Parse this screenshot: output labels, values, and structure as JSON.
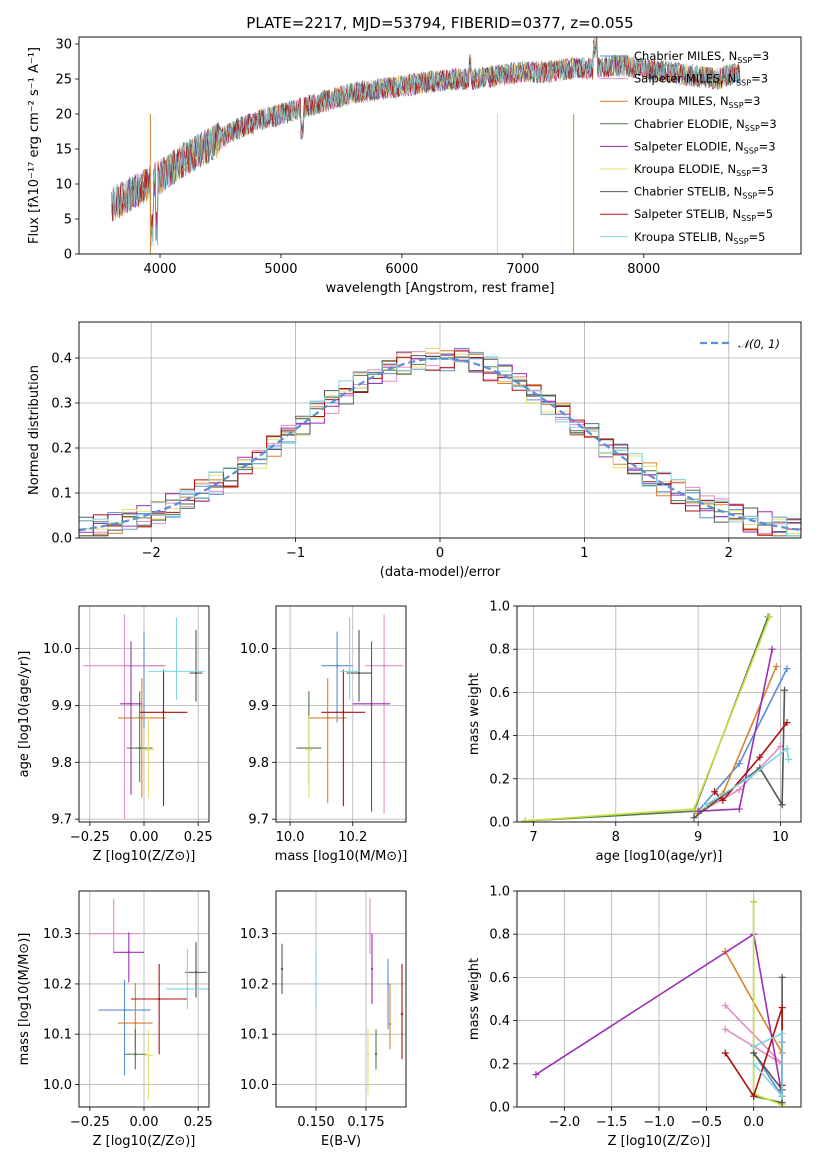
{
  "figure": {
    "title": "PLATE=2217, MJD=53794, FIBERID=0377, z=0.055"
  },
  "chart_data": [
    {
      "type": "line",
      "panel": "spectrum",
      "title": "PLATE=2217, MJD=53794, FIBERID=0377, z=0.055",
      "xlabel": "wavelength [Angstrom, rest frame]",
      "ylabel": "Flux [fλ10⁻¹⁷ erg cm⁻² s⁻¹ A⁻¹]",
      "xlim": [
        3330,
        9300
      ],
      "ylim": [
        0,
        31
      ],
      "xticks": [
        4000,
        5000,
        6000,
        7000,
        8000
      ],
      "yticks": [
        0,
        5,
        10,
        15,
        20,
        25,
        30
      ],
      "grid": false,
      "legend_position": "right",
      "continuum": {
        "x": [
          3600,
          3800,
          4000,
          4200,
          4400,
          4600,
          4800,
          5000,
          5200,
          5400,
          5600,
          5800,
          6000,
          6200,
          6400,
          6600,
          6800,
          7000,
          7200,
          7400,
          7600,
          7800,
          8000,
          8200,
          8400,
          8600,
          8800
        ],
        "y": [
          7,
          9,
          11,
          13.5,
          15.5,
          17.5,
          19,
          20,
          21,
          22,
          23,
          23.5,
          24,
          24.5,
          25,
          25,
          25.5,
          26,
          26,
          26.5,
          26.5,
          27,
          26.5,
          26,
          25.5,
          25,
          26
        ]
      },
      "series": [
        {
          "name": "Chabrier MILES, N_SSP=3",
          "color": "#5a8fd6"
        },
        {
          "name": "Salpeter MILES, N_SSP=3",
          "color": "#e58dc6"
        },
        {
          "name": "Kroupa MILES, N_SSP=3",
          "color": "#d9822b"
        },
        {
          "name": "Chabrier ELODIE, N_SSP=3",
          "color": "#4f7a4f"
        },
        {
          "name": "Salpeter ELODIE, N_SSP=3",
          "color": "#9b30b5"
        },
        {
          "name": "Kroupa ELODIE, N_SSP=3",
          "color": "#e8e070"
        },
        {
          "name": "Chabrier STELIB, N_SSP=5",
          "color": "#555555"
        },
        {
          "name": "Salpeter STELIB, N_SSP=5",
          "color": "#b01010"
        },
        {
          "name": "Kroupa STELIB, N_SSP=5",
          "color": "#7fd4e0"
        }
      ]
    },
    {
      "type": "histogram",
      "panel": "residuals",
      "xlabel": "(data-model)/error",
      "ylabel": "Normed distribution",
      "xlim": [
        -2.5,
        2.5
      ],
      "ylim": [
        0,
        0.48
      ],
      "xticks": [
        -2,
        -1,
        0,
        1,
        2
      ],
      "yticks": [
        0.0,
        0.1,
        0.2,
        0.3,
        0.4
      ],
      "grid": true,
      "legend_position": "top-right",
      "reference_curve": {
        "name": "𝒩(0, 1)",
        "mean": 0,
        "sigma": 1,
        "color": "#5a8fd6"
      },
      "bin_width": 0.1
    },
    {
      "type": "scatter",
      "panel": "age-vs-Z",
      "xlabel": "Z [log10(Z/Z⊙)]",
      "ylabel": "age [log10(age/yr)]",
      "xlim": [
        -0.3,
        0.3
      ],
      "ylim": [
        9.695,
        10.075
      ],
      "xticks": [
        -0.25,
        0.0,
        0.25
      ],
      "yticks": [
        9.7,
        9.8,
        9.9,
        10.0
      ],
      "grid": true,
      "points": [
        {
          "x": 0.0,
          "y": 9.97,
          "xerr": 0.09,
          "yerr": [
            0.11,
            0.06
          ],
          "color": "#5a8fd6"
        },
        {
          "x": -0.09,
          "y": 9.97,
          "xerr": 0.19,
          "yerr": [
            0.27,
            0.09
          ],
          "color": "#e58dc6"
        },
        {
          "x": -0.01,
          "y": 9.878,
          "xerr": 0.11,
          "yerr": [
            0.14,
            0.07
          ],
          "color": "#d9822b"
        },
        {
          "x": -0.02,
          "y": 9.825,
          "xerr": 0.06,
          "yerr": [
            0.06,
            0.1
          ],
          "color": "#4f7a4f"
        },
        {
          "x": -0.06,
          "y": 9.903,
          "xerr": 0.05,
          "yerr": [
            0.16,
            0.11
          ],
          "color": "#9b30b5"
        },
        {
          "x": 0.02,
          "y": 9.822,
          "xerr": 0.03,
          "yerr": [
            0.085,
            0.06
          ],
          "color": "#e8e070"
        },
        {
          "x": 0.24,
          "y": 9.957,
          "xerr": 0.03,
          "yerr": [
            0.05,
            0.076
          ],
          "color": "#555555"
        },
        {
          "x": 0.09,
          "y": 9.888,
          "xerr": 0.11,
          "yerr": [
            0.165,
            0.075
          ],
          "color": "#b01010"
        },
        {
          "x": 0.15,
          "y": 9.96,
          "xerr": 0.13,
          "yerr": [
            0.05,
            0.095
          ],
          "color": "#7fd4e0"
        }
      ]
    },
    {
      "type": "scatter",
      "panel": "age-vs-mass",
      "xlabel": "mass [log10(M/M⊙)]",
      "ylabel": "",
      "xlim": [
        9.955,
        10.37
      ],
      "ylim": [
        9.695,
        10.075
      ],
      "xticks": [
        10.0,
        10.2
      ],
      "yticks": [
        9.7,
        9.8,
        9.9,
        10.0
      ],
      "grid": true,
      "points": [
        {
          "x": 10.15,
          "y": 9.97,
          "xerr": 0.05,
          "yerr": [
            0.1,
            0.06
          ],
          "color": "#5a8fd6"
        },
        {
          "x": 10.3,
          "y": 9.97,
          "xerr": 0.06,
          "yerr": [
            0.26,
            0.09
          ],
          "color": "#e58dc6"
        },
        {
          "x": 10.12,
          "y": 9.878,
          "xerr": 0.06,
          "yerr": [
            0.15,
            0.07
          ],
          "color": "#d9822b"
        },
        {
          "x": 10.06,
          "y": 9.825,
          "xerr": 0.04,
          "yerr": [
            0.06,
            0.1
          ],
          "color": "#4f7a4f"
        },
        {
          "x": 10.26,
          "y": 9.903,
          "xerr": 0.06,
          "yerr": [
            0.19,
            0.11
          ],
          "color": "#9b30b5"
        },
        {
          "x": 10.06,
          "y": 9.822,
          "xerr": 0.01,
          "yerr": [
            0.085,
            0.06
          ],
          "color": "#e8e070"
        },
        {
          "x": 10.22,
          "y": 9.957,
          "xerr": 0.04,
          "yerr": [
            0.05,
            0.076
          ],
          "color": "#555555"
        },
        {
          "x": 10.17,
          "y": 9.888,
          "xerr": 0.07,
          "yerr": [
            0.165,
            0.075
          ],
          "color": "#b01010"
        },
        {
          "x": 10.19,
          "y": 9.96,
          "xerr": 0.03,
          "yerr": [
            0.05,
            0.095
          ],
          "color": "#7fd4e0"
        }
      ]
    },
    {
      "type": "line",
      "panel": "mass-weight-vs-age",
      "xlabel": "age [log10(age/yr)]",
      "ylabel": "mass weight",
      "xlim": [
        6.8,
        10.25
      ],
      "ylim": [
        0,
        1.0
      ],
      "xticks": [
        7,
        8,
        9,
        10
      ],
      "yticks": [
        0.0,
        0.2,
        0.4,
        0.6,
        0.8,
        1.0
      ],
      "grid": true,
      "series": [
        {
          "name": "Chabrier MILES",
          "color": "#5a8fd6",
          "x": [
            9.0,
            9.5,
            10.08
          ],
          "y": [
            0.05,
            0.27,
            0.71
          ]
        },
        {
          "name": "Salpeter MILES",
          "color": "#e58dc6",
          "x": [
            9.0,
            9.5,
            10.0
          ],
          "y": [
            0.04,
            0.15,
            0.35
          ]
        },
        {
          "name": "Kroupa MILES",
          "color": "#d9822b",
          "x": [
            9.0,
            9.3,
            9.95
          ],
          "y": [
            0.04,
            0.13,
            0.72
          ]
        },
        {
          "name": "Chabrier ELODIE",
          "color": "#4f7a4f",
          "x": [
            6.9,
            8.95,
            9.85
          ],
          "y": [
            0.005,
            0.05,
            0.95
          ]
        },
        {
          "name": "Salpeter ELODIE",
          "color": "#9b30b5",
          "x": [
            9.0,
            9.5,
            9.9
          ],
          "y": [
            0.05,
            0.06,
            0.8
          ]
        },
        {
          "name": "Kroupa ELODIE",
          "color": "#c8e040",
          "x": [
            6.9,
            8.95,
            9.87
          ],
          "y": [
            0.005,
            0.06,
            0.95
          ]
        },
        {
          "name": "Chabrier STELIB",
          "color": "#555555",
          "x": [
            8.95,
            9.75,
            10.02,
            10.05
          ],
          "y": [
            0.02,
            0.25,
            0.08,
            0.61
          ]
        },
        {
          "name": "Salpeter STELIB",
          "color": "#b01010",
          "x": [
            9.2,
            9.3,
            9.75,
            10.08
          ],
          "y": [
            0.14,
            0.1,
            0.3,
            0.46
          ]
        },
        {
          "name": "Kroupa STELIB",
          "color": "#7fd4e0",
          "x": [
            9.1,
            9.6,
            10.08,
            10.1
          ],
          "y": [
            0.08,
            0.2,
            0.34,
            0.29
          ]
        }
      ]
    },
    {
      "type": "scatter",
      "panel": "mass-vs-Z",
      "xlabel": "Z [log10(Z/Z⊙)]",
      "ylabel": "mass [log10(M/M⊙)]",
      "xlim": [
        -0.3,
        0.3
      ],
      "ylim": [
        9.955,
        10.385
      ],
      "xticks": [
        -0.25,
        0.0,
        0.25
      ],
      "yticks": [
        10.0,
        10.1,
        10.2,
        10.3
      ],
      "grid": true,
      "points": [
        {
          "x": -0.09,
          "y": 10.148,
          "xerr": 0.12,
          "yerr": [
            0.13,
            0.06
          ],
          "color": "#5a8fd6"
        },
        {
          "x": -0.14,
          "y": 10.3,
          "xerr": 0.12,
          "yerr": [
            0.04,
            0.07
          ],
          "color": "#e58dc6"
        },
        {
          "x": -0.04,
          "y": 10.122,
          "xerr": 0.08,
          "yerr": [
            0.05,
            0.08
          ],
          "color": "#d9822b"
        },
        {
          "x": -0.04,
          "y": 10.06,
          "xerr": 0.05,
          "yerr": [
            0.03,
            0.05
          ],
          "color": "#4f7a4f"
        },
        {
          "x": -0.07,
          "y": 10.263,
          "xerr": 0.07,
          "yerr": [
            0.06,
            0.04
          ],
          "color": "#9b30b5"
        },
        {
          "x": 0.02,
          "y": 10.058,
          "xerr": 0.02,
          "yerr": [
            0.09,
            0.05
          ],
          "color": "#e8e070"
        },
        {
          "x": 0.24,
          "y": 10.223,
          "xerr": 0.05,
          "yerr": [
            0.05,
            0.06
          ],
          "color": "#555555"
        },
        {
          "x": 0.07,
          "y": 10.17,
          "xerr": 0.13,
          "yerr": [
            0.11,
            0.07
          ],
          "color": "#b01010"
        },
        {
          "x": 0.2,
          "y": 10.19,
          "xerr": 0.1,
          "yerr": [
            0.04,
            0.08
          ],
          "color": "#7fd4e0"
        }
      ]
    },
    {
      "type": "scatter",
      "panel": "mass-vs-EBV",
      "xlabel": "E(B-V)",
      "ylabel": "",
      "xlim": [
        0.13,
        0.195
      ],
      "ylim": [
        9.955,
        10.385
      ],
      "xticks": [
        0.15,
        0.175
      ],
      "yticks": [
        10.0,
        10.1,
        10.2,
        10.3
      ],
      "grid": true,
      "points": [
        {
          "x": 0.186,
          "y": 10.2,
          "xerr": 0,
          "yerr": [
            0.09,
            0.05
          ],
          "color": "#5a8fd6"
        },
        {
          "x": 0.177,
          "y": 10.3,
          "xerr": 0,
          "yerr": [
            0.04,
            0.07
          ],
          "color": "#e58dc6"
        },
        {
          "x": 0.187,
          "y": 10.12,
          "xerr": 0,
          "yerr": [
            0.05,
            0.08
          ],
          "color": "#d9822b"
        },
        {
          "x": 0.18,
          "y": 10.06,
          "xerr": 0,
          "yerr": [
            0.03,
            0.05
          ],
          "color": "#4f7a4f"
        },
        {
          "x": 0.178,
          "y": 10.23,
          "xerr": 0,
          "yerr": [
            0.07,
            0.07
          ],
          "color": "#9b30b5"
        },
        {
          "x": 0.176,
          "y": 10.06,
          "xerr": 0,
          "yerr": [
            0.08,
            0.05
          ],
          "color": "#e8e070"
        },
        {
          "x": 0.133,
          "y": 10.23,
          "xerr": 0,
          "yerr": [
            0.05,
            0.05
          ],
          "color": "#555555"
        },
        {
          "x": 0.193,
          "y": 10.14,
          "xerr": 0,
          "yerr": [
            0.09,
            0.1
          ],
          "color": "#b01010"
        },
        {
          "x": 0.15,
          "y": 10.2,
          "xerr": 0,
          "yerr": [
            0.05,
            0.07
          ],
          "color": "#7fd4e0"
        }
      ]
    },
    {
      "type": "line",
      "panel": "mass-weight-vs-Z",
      "xlabel": "Z [log10(Z/Z⊙)]",
      "ylabel": "mass weight",
      "xlim": [
        -2.5,
        0.5
      ],
      "ylim": [
        0,
        1.0
      ],
      "xticks": [
        -2.0,
        -1.5,
        -1.0,
        -0.5,
        0.0
      ],
      "yticks": [
        0.0,
        0.2,
        0.4,
        0.6,
        0.8,
        1.0
      ],
      "grid": true,
      "series": [
        {
          "name": "Chabrier MILES",
          "color": "#5a8fd6",
          "x": [
            0.0,
            0.3,
            0.3
          ],
          "y": [
            0.25,
            0.05,
            0.3
          ]
        },
        {
          "name": "Salpeter MILES",
          "color": "#e58dc6",
          "x": [
            -0.3,
            0.3,
            -0.3
          ],
          "y": [
            0.47,
            0.2,
            0.36
          ]
        },
        {
          "name": "Kroupa MILES",
          "color": "#d9822b",
          "x": [
            -0.3,
            0.3,
            0.3
          ],
          "y": [
            0.72,
            0.25,
            0.05
          ]
        },
        {
          "name": "Chabrier ELODIE",
          "color": "#4f7a4f",
          "x": [
            0.0,
            0.0,
            0.3
          ],
          "y": [
            0.95,
            0.05,
            0.02
          ]
        },
        {
          "name": "Salpeter ELODIE",
          "color": "#9b30b5",
          "x": [
            -2.3,
            0.0,
            0.3
          ],
          "y": [
            0.15,
            0.8,
            0.05
          ]
        },
        {
          "name": "Kroupa ELODIE",
          "color": "#c8e040",
          "x": [
            0.0,
            0.0,
            0.3
          ],
          "y": [
            0.95,
            0.06,
            0.01
          ]
        },
        {
          "name": "Chabrier STELIB",
          "color": "#555555",
          "x": [
            0.0,
            0.3,
            0.3,
            0.3
          ],
          "y": [
            0.25,
            0.08,
            0.6,
            0.02
          ]
        },
        {
          "name": "Salpeter STELIB",
          "color": "#b01010",
          "x": [
            -0.3,
            0.0,
            0.3,
            0.3
          ],
          "y": [
            0.25,
            0.05,
            0.46,
            0.1
          ]
        },
        {
          "name": "Kroupa STELIB",
          "color": "#7fd4e0",
          "x": [
            0.0,
            0.3,
            0.3,
            0.0
          ],
          "y": [
            0.28,
            0.34,
            0.05,
            0.2
          ]
        }
      ]
    }
  ]
}
